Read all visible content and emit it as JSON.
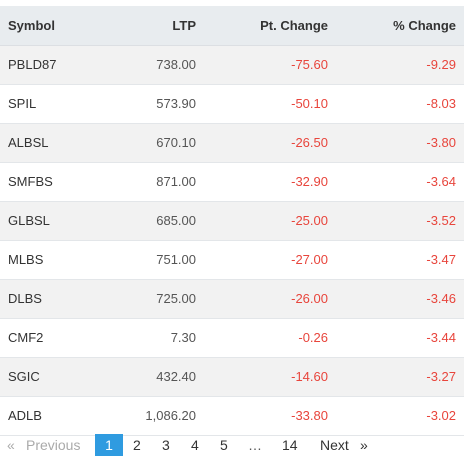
{
  "table": {
    "headers": {
      "symbol": "Symbol",
      "ltp": "LTP",
      "pt_change": "Pt. Change",
      "pct_change": "% Change"
    },
    "rows": [
      {
        "symbol": "PBLD87",
        "ltp": "738.00",
        "pt_change": "-75.60",
        "pct_change": "-9.29"
      },
      {
        "symbol": "SPIL",
        "ltp": "573.90",
        "pt_change": "-50.10",
        "pct_change": "-8.03"
      },
      {
        "symbol": "ALBSL",
        "ltp": "670.10",
        "pt_change": "-26.50",
        "pct_change": "-3.80"
      },
      {
        "symbol": "SMFBS",
        "ltp": "871.00",
        "pt_change": "-32.90",
        "pct_change": "-3.64"
      },
      {
        "symbol": "GLBSL",
        "ltp": "685.00",
        "pt_change": "-25.00",
        "pct_change": "-3.52"
      },
      {
        "symbol": "MLBS",
        "ltp": "751.00",
        "pt_change": "-27.00",
        "pct_change": "-3.47"
      },
      {
        "symbol": "DLBS",
        "ltp": "725.00",
        "pt_change": "-26.00",
        "pct_change": "-3.46"
      },
      {
        "symbol": "CMF2",
        "ltp": "7.30",
        "pt_change": "-0.26",
        "pct_change": "-3.44"
      },
      {
        "symbol": "SGIC",
        "ltp": "432.40",
        "pt_change": "-14.60",
        "pct_change": "-3.27"
      },
      {
        "symbol": "ADLB",
        "ltp": "1,086.20",
        "pt_change": "-33.80",
        "pct_change": "-3.02"
      }
    ]
  },
  "pagination": {
    "prev_arrow": "«",
    "prev_label": "Previous",
    "pages": [
      "1",
      "2",
      "3",
      "4",
      "5"
    ],
    "ellipsis": "…",
    "last_page": "14",
    "next_label": "Next",
    "next_arrow": "»",
    "active_page": "1"
  },
  "colors": {
    "negative": "#e8453c",
    "header_bg": "#e8ecef",
    "active_page_bg": "#2f9be0"
  }
}
